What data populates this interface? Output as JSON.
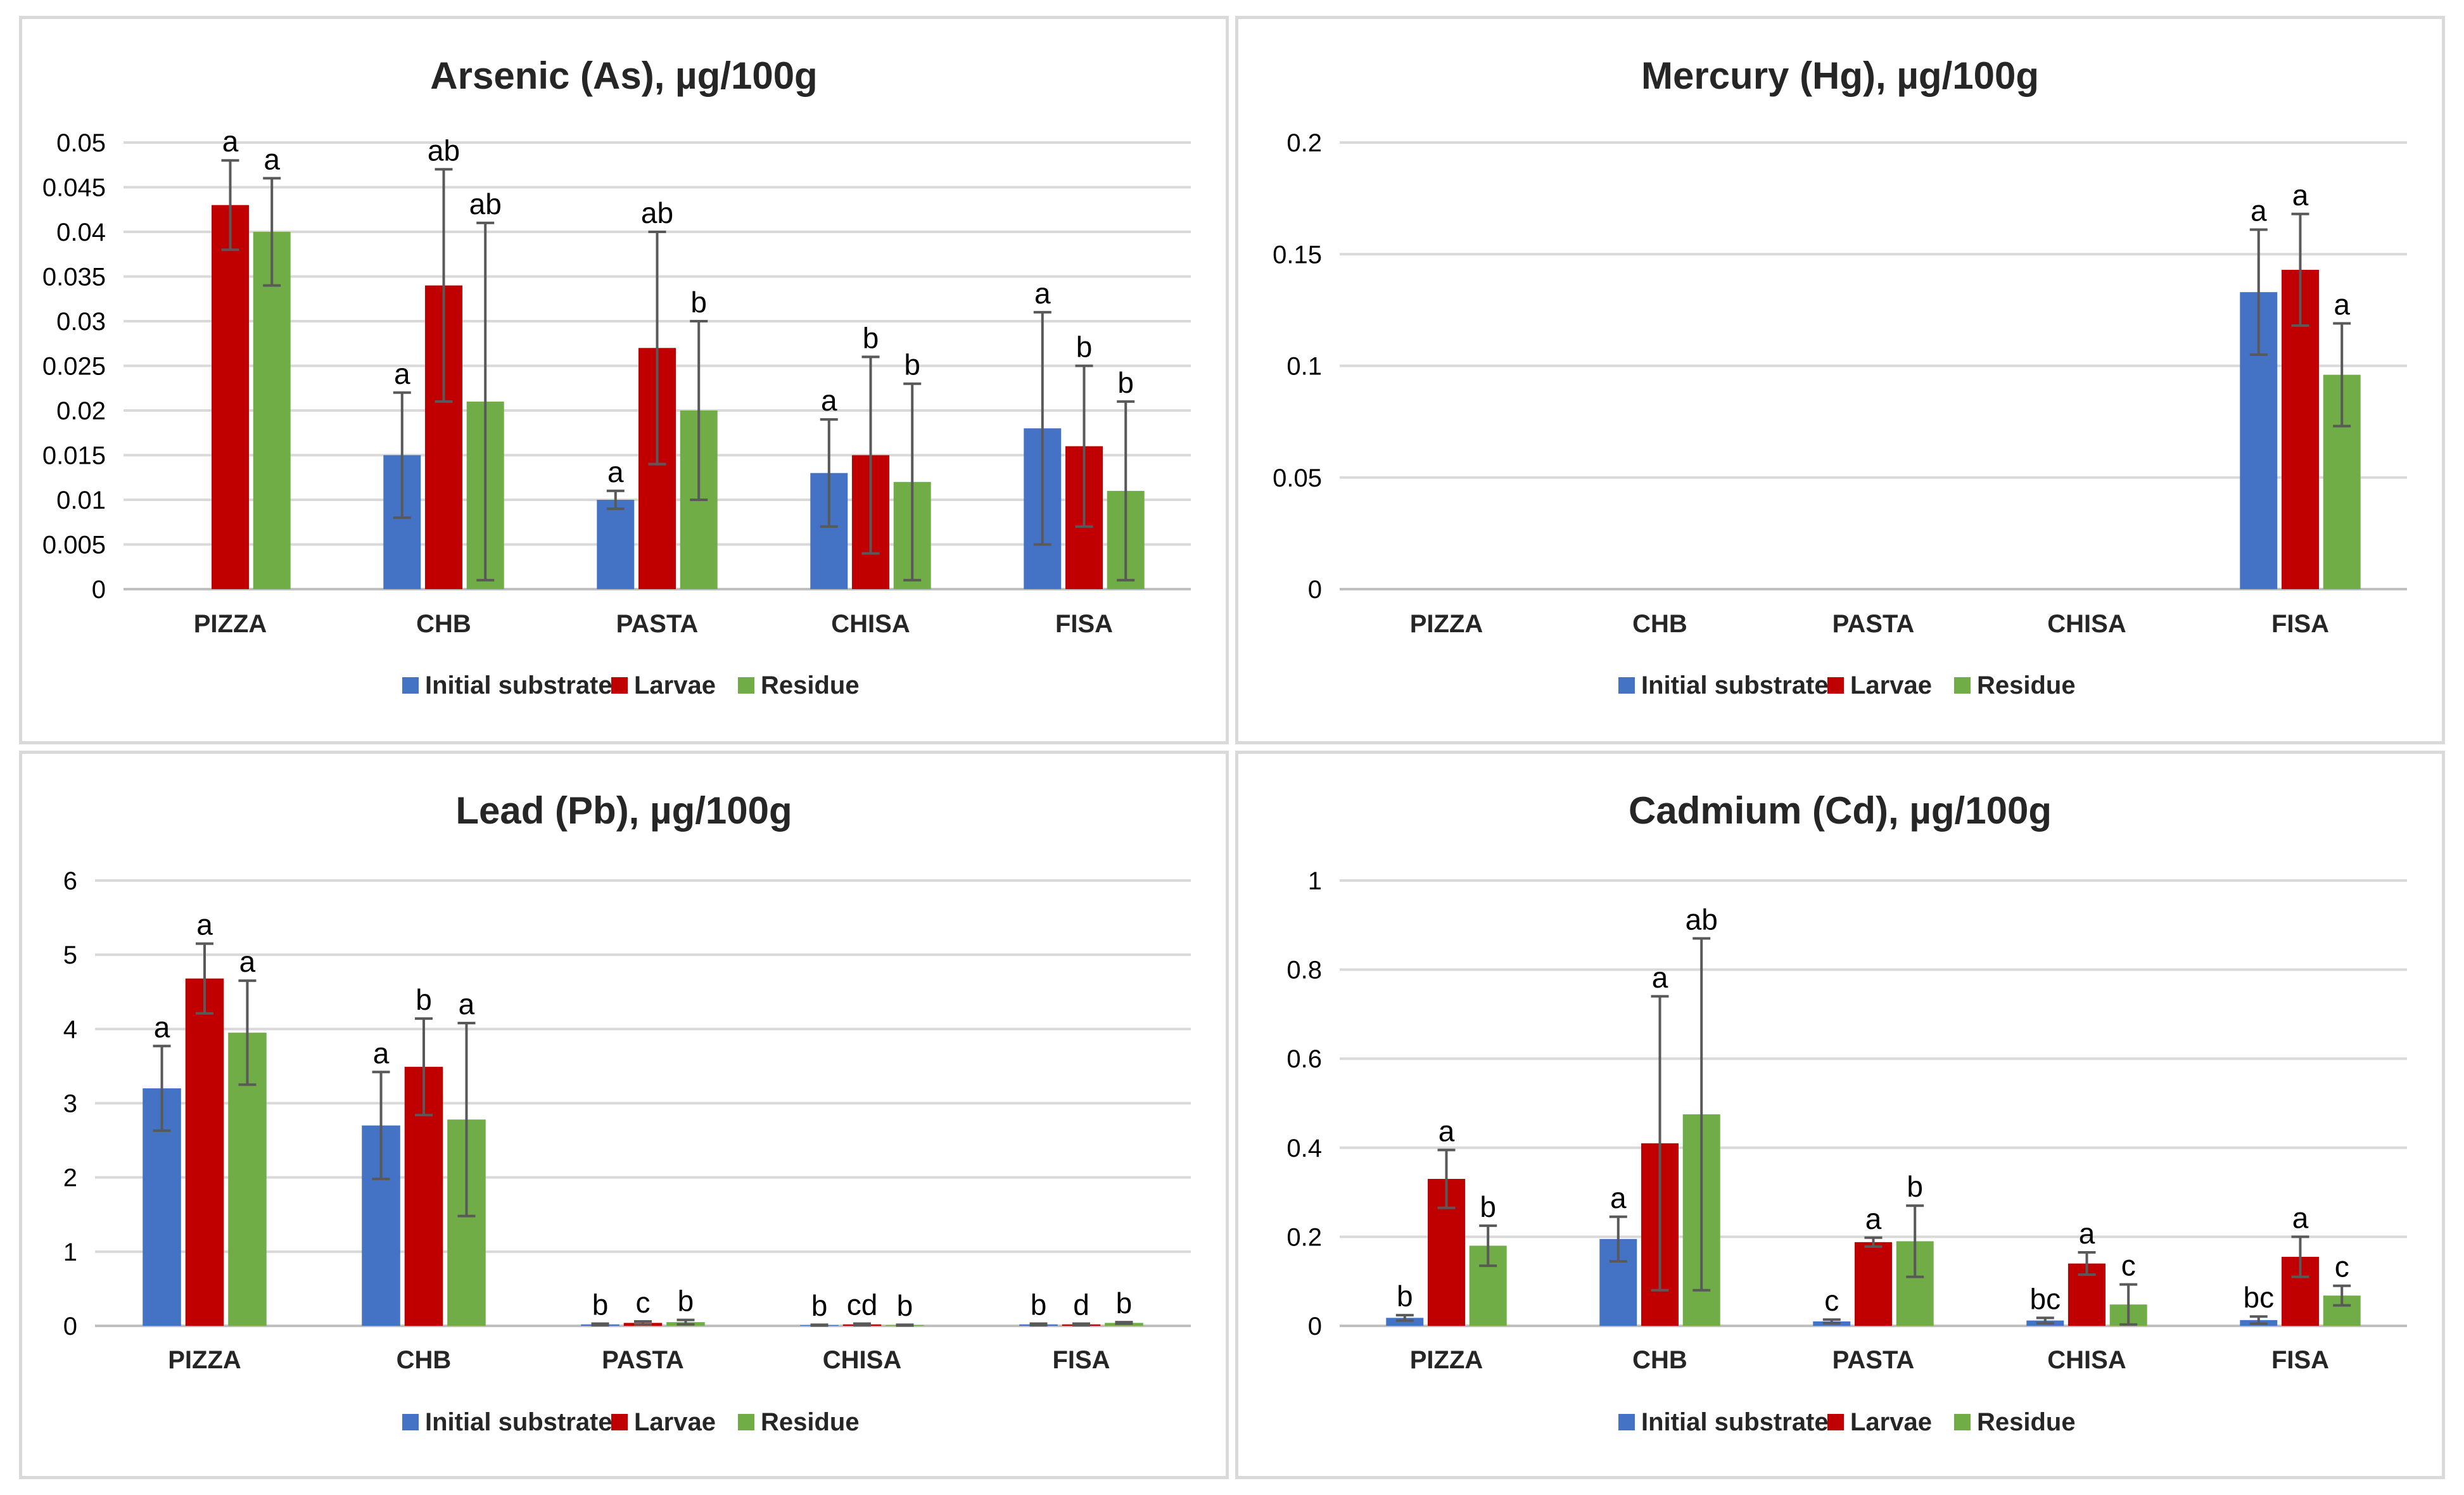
{
  "series_names": [
    "Initial substrate",
    "Larvae",
    "Residue"
  ],
  "series_colors": [
    "#4472C4",
    "#C00000",
    "#70AD47"
  ],
  "chart_data": [
    {
      "type": "bar",
      "title": "Arsenic (As), µg/100g",
      "categories": [
        "PIZZA",
        "CHB",
        "PASTA",
        "CHISA",
        "FISA"
      ],
      "ylim": [
        0,
        0.05
      ],
      "yticks": [
        0,
        0.005,
        0.01,
        0.015,
        0.02,
        0.025,
        0.03,
        0.035,
        0.04,
        0.045,
        0.05
      ],
      "ytick_labels": [
        "0",
        "0.005",
        "0.01",
        "0.015",
        "0.02",
        "0.025",
        "0.03",
        "0.035",
        "0.04",
        "0.045",
        "0.05"
      ],
      "series": [
        {
          "name": "Initial substrate",
          "values": [
            null,
            0.015,
            0.01,
            0.013,
            0.018
          ],
          "errors": [
            null,
            0.007,
            0.001,
            0.006,
            0.013
          ],
          "labels": [
            "",
            "a",
            "a",
            "a",
            "a"
          ]
        },
        {
          "name": "Larvae",
          "values": [
            0.043,
            0.034,
            0.027,
            0.015,
            0.016
          ],
          "errors": [
            0.005,
            0.013,
            0.013,
            0.011,
            0.009
          ],
          "labels": [
            "a",
            "ab",
            "ab",
            "b",
            "b"
          ]
        },
        {
          "name": "Residue",
          "values": [
            0.04,
            0.021,
            0.02,
            0.012,
            0.011
          ],
          "errors": [
            0.006,
            0.02,
            0.01,
            0.011,
            0.01
          ],
          "labels": [
            "a",
            "ab",
            "b",
            "b",
            "b"
          ]
        }
      ]
    },
    {
      "type": "bar",
      "title": "Mercury (Hg), µg/100g",
      "categories": [
        "PIZZA",
        "CHB",
        "PASTA",
        "CHISA",
        "FISA"
      ],
      "ylim": [
        0,
        0.2
      ],
      "yticks": [
        0,
        0.05,
        0.1,
        0.15,
        0.2
      ],
      "ytick_labels": [
        "0",
        "0.05",
        "0.1",
        "0.15",
        "0.2"
      ],
      "series": [
        {
          "name": "Initial substrate",
          "values": [
            null,
            null,
            null,
            null,
            0.133
          ],
          "errors": [
            null,
            null,
            null,
            null,
            0.028
          ],
          "labels": [
            "",
            "",
            "",
            "",
            "a"
          ]
        },
        {
          "name": "Larvae",
          "values": [
            null,
            null,
            null,
            null,
            0.143
          ],
          "errors": [
            null,
            null,
            null,
            null,
            0.025
          ],
          "labels": [
            "",
            "",
            "",
            "",
            "a"
          ]
        },
        {
          "name": "Residue",
          "values": [
            null,
            null,
            null,
            null,
            0.096
          ],
          "errors": [
            null,
            null,
            null,
            null,
            0.023
          ],
          "labels": [
            "",
            "",
            "",
            "",
            "a"
          ]
        }
      ]
    },
    {
      "type": "bar",
      "title": "Lead (Pb), µg/100g",
      "categories": [
        "PIZZA",
        "CHB",
        "PASTA",
        "CHISA",
        "FISA"
      ],
      "ylim": [
        0,
        6
      ],
      "yticks": [
        0,
        1,
        2,
        3,
        4,
        5,
        6
      ],
      "ytick_labels": [
        "0",
        "1",
        "2",
        "3",
        "4",
        "5",
        "6"
      ],
      "series": [
        {
          "name": "Initial substrate",
          "values": [
            3.2,
            2.7,
            0.02,
            0.01,
            0.02
          ],
          "errors": [
            0.57,
            0.72,
            0.01,
            0.005,
            0.01
          ],
          "labels": [
            "a",
            "a",
            "b",
            "b",
            "b"
          ]
        },
        {
          "name": "Larvae",
          "values": [
            4.68,
            3.49,
            0.04,
            0.02,
            0.02
          ],
          "errors": [
            0.47,
            0.65,
            0.02,
            0.01,
            0.01
          ],
          "labels": [
            "a",
            "b",
            "c",
            "cd",
            "d"
          ]
        },
        {
          "name": "Residue",
          "values": [
            3.95,
            2.78,
            0.05,
            0.01,
            0.04
          ],
          "errors": [
            0.7,
            1.3,
            0.03,
            0.005,
            0.01
          ],
          "labels": [
            "a",
            "a",
            "b",
            "b",
            "b"
          ]
        }
      ]
    },
    {
      "type": "bar",
      "title": "Cadmium (Cd), µg/100g",
      "categories": [
        "PIZZA",
        "CHB",
        "PASTA",
        "CHISA",
        "FISA"
      ],
      "ylim": [
        0,
        1
      ],
      "yticks": [
        0,
        0.2,
        0.4,
        0.6,
        0.8,
        1
      ],
      "ytick_labels": [
        "0",
        "0.2",
        "0.4",
        "0.6",
        "0.8",
        "1"
      ],
      "series": [
        {
          "name": "Initial substrate",
          "values": [
            0.018,
            0.195,
            0.01,
            0.012,
            0.013
          ],
          "errors": [
            0.006,
            0.05,
            0.004,
            0.006,
            0.008
          ],
          "labels": [
            "b",
            "a",
            "c",
            "bc",
            "bc"
          ]
        },
        {
          "name": "Larvae",
          "values": [
            0.33,
            0.41,
            0.188,
            0.14,
            0.155
          ],
          "errors": [
            0.065,
            0.33,
            0.01,
            0.025,
            0.045
          ],
          "labels": [
            "a",
            "a",
            "a",
            "a",
            "a"
          ]
        },
        {
          "name": "Residue",
          "values": [
            0.18,
            0.475,
            0.19,
            0.048,
            0.068
          ],
          "errors": [
            0.045,
            0.395,
            0.08,
            0.045,
            0.022
          ],
          "labels": [
            "b",
            "ab",
            "b",
            "c",
            "c"
          ]
        }
      ]
    }
  ]
}
